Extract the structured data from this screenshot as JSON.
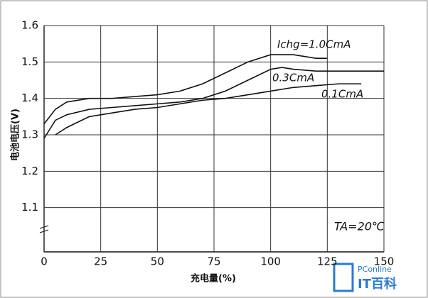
{
  "chart_data": {
    "type": "line",
    "xlabel": "充电量(%)",
    "ylabel": "电池电压(V)",
    "xlim": [
      0,
      150
    ],
    "xticks": [
      0,
      25,
      50,
      75,
      100,
      125,
      150
    ],
    "ylim": [
      1.0,
      1.6
    ],
    "yticks": [
      1.1,
      1.2,
      1.3,
      1.4,
      1.5,
      1.6
    ],
    "grid": true,
    "annotation": "TA=20℃",
    "series": [
      {
        "name": "Ichg=1.0CmA",
        "color": "#111111",
        "x": [
          0,
          5,
          10,
          20,
          30,
          40,
          50,
          60,
          70,
          80,
          90,
          100,
          110,
          120,
          125
        ],
        "values": [
          1.33,
          1.37,
          1.39,
          1.4,
          1.4,
          1.405,
          1.41,
          1.42,
          1.44,
          1.47,
          1.5,
          1.52,
          1.52,
          1.51,
          1.51
        ]
      },
      {
        "name": "0.3CmA",
        "color": "#111111",
        "x": [
          0,
          5,
          10,
          20,
          30,
          40,
          50,
          60,
          70,
          80,
          90,
          100,
          105,
          110,
          120,
          130,
          150
        ],
        "values": [
          1.29,
          1.34,
          1.355,
          1.37,
          1.375,
          1.38,
          1.385,
          1.39,
          1.4,
          1.42,
          1.45,
          1.48,
          1.485,
          1.48,
          1.475,
          1.475,
          1.475
        ]
      },
      {
        "name": "0.1CmA",
        "color": "#111111",
        "x": [
          5,
          10,
          20,
          30,
          40,
          50,
          60,
          70,
          80,
          90,
          100,
          110,
          120,
          130,
          140
        ],
        "values": [
          1.3,
          1.32,
          1.35,
          1.36,
          1.37,
          1.375,
          1.385,
          1.395,
          1.4,
          1.41,
          1.42,
          1.43,
          1.435,
          1.44,
          1.44
        ]
      }
    ]
  },
  "watermark": {
    "brand": "PConline",
    "name": "IT百科"
  }
}
